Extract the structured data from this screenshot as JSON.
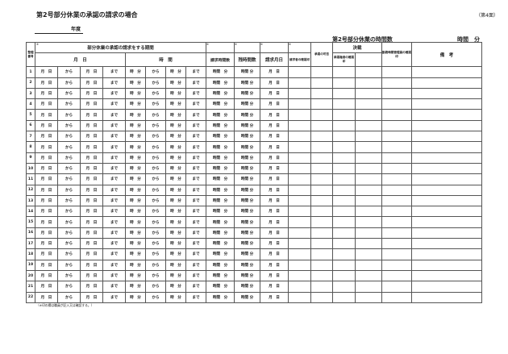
{
  "title": "第2号部分休業の承認の請求の場合",
  "page_label": "（第4面）",
  "year_label": "年度",
  "summary": {
    "label": "第2号部分休業の時間数",
    "unit": "時間　分"
  },
  "headers": {
    "number": "整理番号",
    "marker": "※",
    "period": "部分休業の承認の請求をする期間",
    "month_day": "月　日",
    "time": "時　間",
    "request_hours": "請求時間数",
    "remaining_hours": "残時間数",
    "request_date": "請求月日",
    "requester_seal": "請求者の確認印",
    "approval": "承認の可否",
    "decision": "決裁",
    "approver_seal": "承認権者の確認印",
    "manager_seal": "勤務時間管理員の確認印",
    "remarks": "備　考"
  },
  "cells": {
    "month": "月",
    "day": "日",
    "from": "から",
    "to": "まで",
    "hour": "時",
    "minute": "分",
    "hours": "時間"
  },
  "rows": [
    1,
    2,
    3,
    4,
    5,
    6,
    7,
    8,
    9,
    10,
    11,
    12,
    13,
    14,
    15,
    16,
    17,
    18,
    19,
    20,
    21,
    22
  ],
  "note": "（※印の欄は職員が記入又は確認する。）"
}
